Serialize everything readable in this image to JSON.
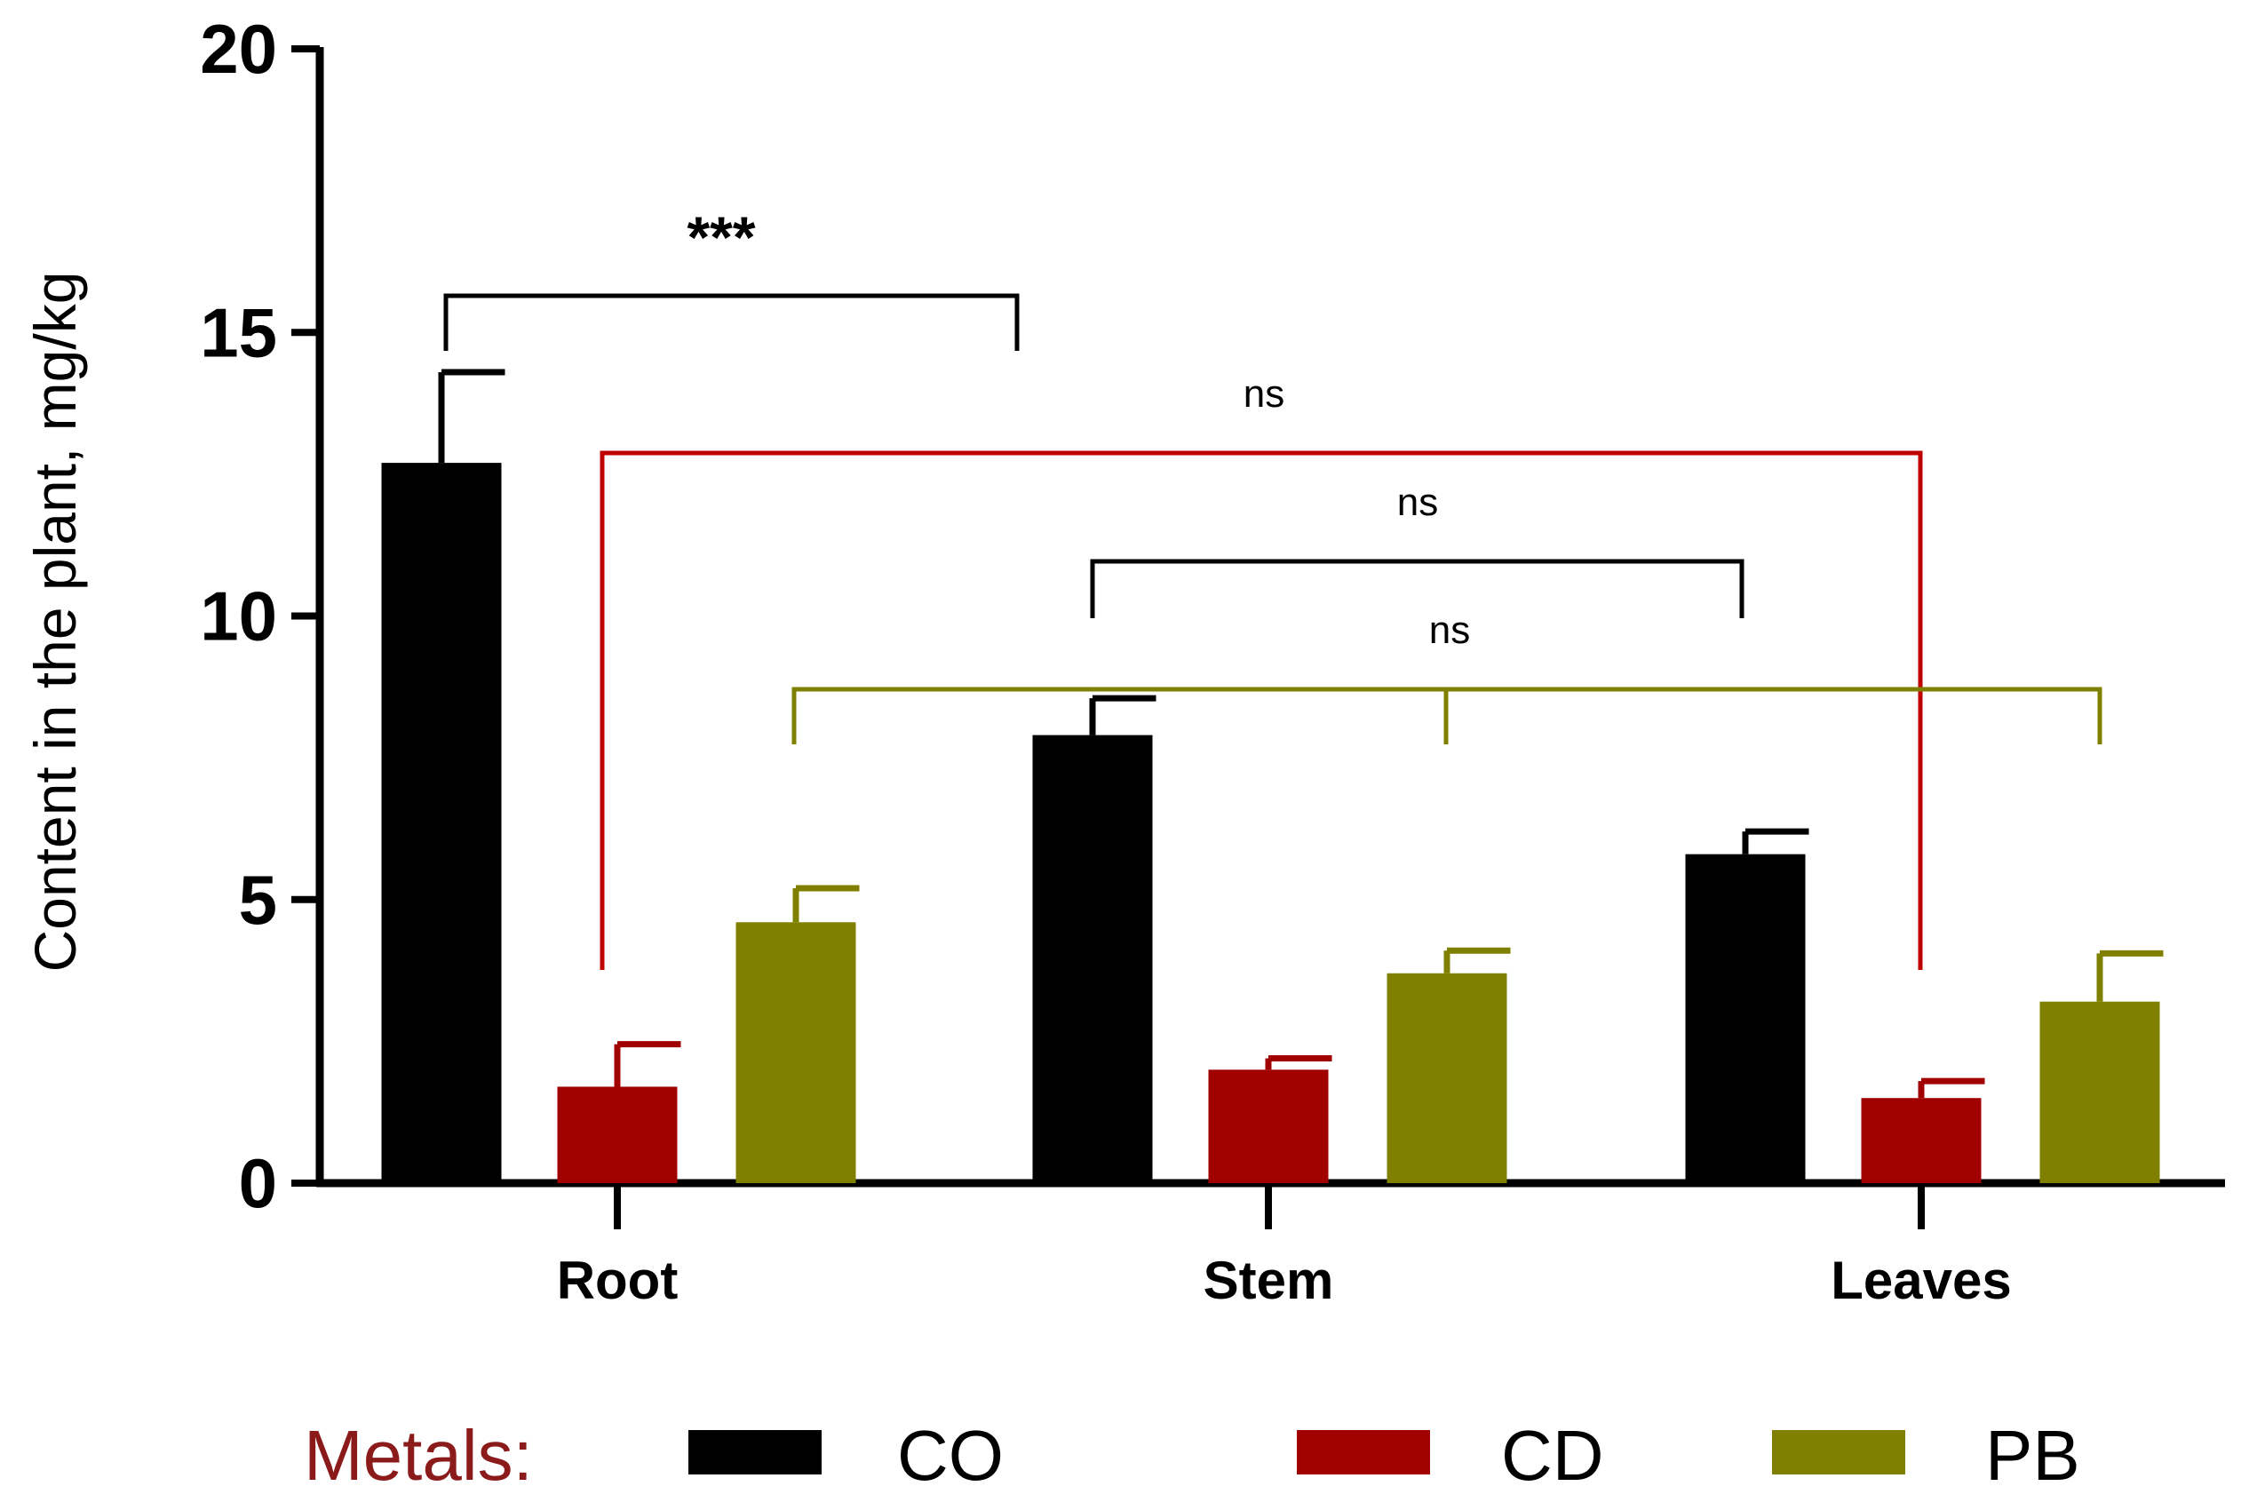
{
  "chart_data": {
    "type": "bar",
    "title": "",
    "xlabel": "",
    "ylabel": "Content in the plant, mg/kg",
    "ylim": [
      0,
      20
    ],
    "yticks": [
      0,
      5,
      10,
      15,
      20
    ],
    "grid": false,
    "categories": [
      "Root",
      "Stem",
      "Leaves"
    ],
    "series": [
      {
        "name": "CO",
        "color": "#000000",
        "values": [
          12.7,
          7.9,
          5.8
        ],
        "errors": [
          1.6,
          0.65,
          0.4
        ]
      },
      {
        "name": "CD",
        "color": "#a00000",
        "values": [
          1.7,
          2.0,
          1.5
        ],
        "errors": [
          0.75,
          0.2,
          0.3
        ]
      },
      {
        "name": "PB",
        "color": "#808000",
        "values": [
          4.6,
          3.7,
          3.2
        ],
        "errors": [
          0.6,
          0.4,
          0.85
        ]
      }
    ],
    "legend": {
      "title": "Metals:",
      "position": "bottom"
    },
    "annotations": [
      {
        "label": "***",
        "color": "#000000",
        "from": {
          "category": "Root",
          "series": "CO"
        },
        "to": {
          "category": "Root",
          "series": "CO",
          "offset_to": "Stem"
        },
        "y": 15.5
      },
      {
        "label": "ns",
        "color": "#c00000",
        "from": {
          "category": "Root",
          "series": "CD"
        },
        "to": {
          "category": "Leaves",
          "series": "CD"
        },
        "y": 12.8
      },
      {
        "label": "ns",
        "color": "#000000",
        "from": {
          "category": "Stem",
          "series": "CO"
        },
        "to": {
          "category": "Leaves",
          "series": "CO"
        },
        "y": 10.9
      },
      {
        "label": "ns",
        "color": "#808000",
        "from": {
          "category": "Root",
          "series": "PB"
        },
        "to": {
          "category": "Leaves",
          "series": "PB"
        },
        "y": 8.7,
        "mid": {
          "category": "Stem",
          "series": "PB"
        }
      }
    ]
  }
}
